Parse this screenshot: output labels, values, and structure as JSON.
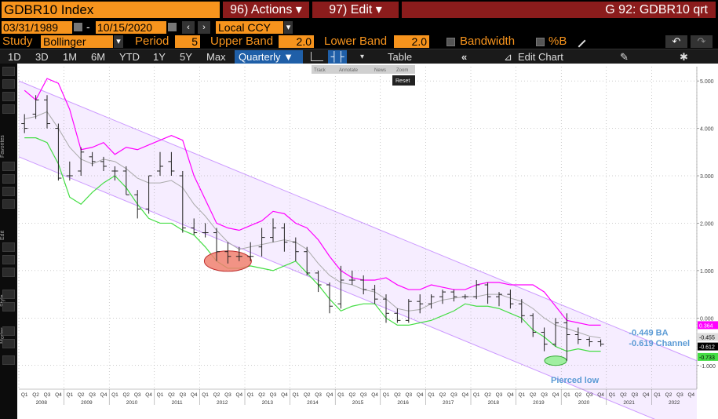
{
  "header": {
    "ticker": "GDBR10 Index",
    "actions_label": "96) Actions ▾",
    "edit_label": "97) Edit ▾",
    "function_title": "G 92: GDBR10 qrt"
  },
  "date_range": {
    "start": "03/31/1989",
    "sep": "-",
    "end": "10/15/2020",
    "currency": "Local CCY"
  },
  "study": {
    "study_label": "Study",
    "study_value": "Bollinger",
    "period_label": "Period",
    "period_value": "5",
    "upper_label": "Upper Band",
    "upper_value": "2.0",
    "lower_label": "Lower Band",
    "lower_value": "2.0",
    "bandwidth_label": "Bandwidth",
    "pctb_label": "%B"
  },
  "toolbar": {
    "ranges": [
      "1D",
      "3D",
      "1M",
      "6M",
      "YTD",
      "1Y",
      "5Y",
      "Max"
    ],
    "frequency": "Quarterly ▼",
    "table_label": "Table",
    "edit_chart_label": "Edit Chart"
  },
  "mini_toolbar": {
    "items": [
      "Track",
      "Annotate",
      "News",
      "Zoom"
    ],
    "reset": "Reset"
  },
  "sidebar": {
    "labels": [
      "Favorites",
      "Edit",
      "Style",
      "Modes"
    ]
  },
  "colors": {
    "accent": "#f7941d",
    "upper_band": "#ff00ff",
    "lower_band": "#44dd44",
    "middle_band": "#aaaaaa",
    "channel": "#cc99ff",
    "annotation_text": "#5b9bd5"
  },
  "chart_data": {
    "type": "ohlc",
    "frequency": "quarterly",
    "ylim": [
      -1.5,
      5.3
    ],
    "y_ticks": [
      5.0,
      4.0,
      3.0,
      2.0,
      1.0,
      0.0,
      -1.0
    ],
    "y_tick_labels": [
      "5.000",
      "4.000",
      "3.000",
      "2.000",
      "1.000",
      "0.000",
      "-1.000"
    ],
    "x_quarter_labels": [
      "Q1",
      "Q2",
      "Q3",
      "Q4"
    ],
    "years": [
      "2008",
      "2009",
      "2010",
      "2011",
      "2012",
      "2013",
      "2014",
      "2015",
      "2016",
      "2017",
      "2018",
      "2019",
      "2020",
      "2021",
      "2022"
    ],
    "price_quarters": 52,
    "total_quarters": 60,
    "ohlc": [
      [
        4.1,
        4.3,
        3.9,
        4.0
      ],
      [
        4.3,
        4.7,
        4.2,
        4.6
      ],
      [
        4.6,
        4.7,
        4.0,
        4.1
      ],
      [
        4.0,
        4.1,
        2.9,
        2.95
      ],
      [
        3.0,
        3.3,
        2.9,
        3.0
      ],
      [
        3.1,
        3.6,
        3.0,
        3.5
      ],
      [
        3.4,
        3.5,
        3.2,
        3.3
      ],
      [
        3.3,
        3.4,
        3.1,
        3.2
      ],
      [
        3.1,
        3.2,
        2.9,
        3.1
      ],
      [
        3.1,
        3.2,
        2.6,
        2.6
      ],
      [
        2.6,
        2.7,
        2.1,
        2.3
      ],
      [
        2.3,
        3.0,
        2.2,
        3.0
      ],
      [
        3.1,
        3.5,
        3.0,
        3.2
      ],
      [
        3.3,
        3.5,
        3.0,
        3.1
      ],
      [
        3.0,
        3.1,
        1.8,
        1.9
      ],
      [
        1.9,
        2.1,
        1.75,
        1.8
      ],
      [
        1.8,
        2.0,
        1.7,
        1.8
      ],
      [
        1.8,
        1.9,
        1.2,
        1.4
      ],
      [
        1.4,
        1.6,
        1.15,
        1.3
      ],
      [
        1.3,
        1.5,
        1.2,
        1.3
      ],
      [
        1.3,
        1.6,
        1.2,
        1.3
      ],
      [
        1.5,
        1.9,
        1.3,
        1.7
      ],
      [
        1.7,
        2.1,
        1.6,
        1.9
      ],
      [
        1.9,
        2.0,
        1.4,
        1.6
      ],
      [
        1.6,
        1.7,
        1.2,
        1.4
      ],
      [
        1.4,
        1.5,
        0.9,
        0.95
      ],
      [
        0.95,
        1.0,
        0.55,
        0.7
      ],
      [
        0.7,
        0.75,
        0.1,
        0.25
      ],
      [
        0.3,
        1.1,
        0.2,
        0.8
      ],
      [
        0.8,
        1.0,
        0.7,
        0.8
      ],
      [
        0.8,
        0.9,
        0.5,
        0.6
      ],
      [
        0.6,
        0.7,
        0.3,
        0.4
      ],
      [
        0.4,
        0.5,
        -0.1,
        0.1
      ],
      [
        0.1,
        0.2,
        -0.1,
        -0.05
      ],
      [
        -0.05,
        0.4,
        -0.1,
        0.35
      ],
      [
        0.35,
        0.5,
        0.1,
        0.3
      ],
      [
        0.3,
        0.5,
        0.2,
        0.45
      ],
      [
        0.45,
        0.6,
        0.3,
        0.55
      ],
      [
        0.55,
        0.6,
        0.35,
        0.45
      ],
      [
        0.45,
        0.5,
        0.4,
        0.45
      ],
      [
        0.45,
        0.8,
        0.4,
        0.7
      ],
      [
        0.7,
        0.75,
        0.3,
        0.45
      ],
      [
        0.45,
        0.55,
        0.25,
        0.5
      ],
      [
        0.5,
        0.6,
        0.2,
        0.3
      ],
      [
        0.3,
        0.4,
        -0.1,
        0.05
      ],
      [
        0.05,
        0.1,
        -0.4,
        -0.3
      ],
      [
        -0.3,
        -0.2,
        -0.7,
        -0.55
      ],
      [
        -0.55,
        0.0,
        -0.6,
        -0.1
      ],
      [
        -0.1,
        0.1,
        -0.9,
        -0.35
      ],
      [
        -0.35,
        -0.2,
        -0.55,
        -0.45
      ],
      [
        -0.45,
        -0.4,
        -0.6,
        -0.5
      ],
      [
        -0.5,
        -0.45,
        -0.6,
        -0.55
      ]
    ],
    "upper_band": [
      4.8,
      4.6,
      5.05,
      4.95,
      4.4,
      3.55,
      3.6,
      3.7,
      3.45,
      3.6,
      3.55,
      3.65,
      3.75,
      3.85,
      3.75,
      3.0,
      2.5,
      2.0,
      1.9,
      1.85,
      1.95,
      2.05,
      2.25,
      2.2,
      2.0,
      1.9,
      1.65,
      1.3,
      1.0,
      0.85,
      0.8,
      0.8,
      0.85,
      0.7,
      0.6,
      0.6,
      0.7,
      0.65,
      0.6,
      0.6,
      0.7,
      0.75,
      0.75,
      0.7,
      0.7,
      0.7,
      0.55,
      0.25,
      -0.05,
      -0.1,
      -0.15,
      -0.15
    ],
    "middle_band": [
      4.2,
      4.25,
      4.35,
      4.0,
      3.6,
      3.35,
      3.25,
      3.35,
      3.3,
      3.15,
      2.95,
      2.85,
      2.85,
      2.9,
      2.75,
      2.4,
      2.15,
      1.85,
      1.6,
      1.45,
      1.5,
      1.55,
      1.6,
      1.65,
      1.6,
      1.45,
      1.15,
      0.9,
      0.75,
      0.7,
      0.6,
      0.55,
      0.4,
      0.2,
      0.15,
      0.18,
      0.3,
      0.38,
      0.42,
      0.45,
      0.45,
      0.5,
      0.5,
      0.42,
      0.35,
      0.2,
      0.0,
      -0.15,
      -0.22,
      -0.3,
      -0.38,
      -0.42
    ],
    "lower_band": [
      3.8,
      3.8,
      3.7,
      3.25,
      2.55,
      2.4,
      2.65,
      2.85,
      3.0,
      2.75,
      2.4,
      2.1,
      2.0,
      2.0,
      1.85,
      1.75,
      1.5,
      1.2,
      1.05,
      1.05,
      1.1,
      1.05,
      1.0,
      1.1,
      1.2,
      0.95,
      0.7,
      0.4,
      0.15,
      0.25,
      0.3,
      0.3,
      0.0,
      -0.15,
      -0.15,
      -0.1,
      -0.05,
      0.05,
      0.15,
      0.3,
      0.25,
      0.25,
      0.2,
      0.1,
      0.0,
      -0.25,
      -0.4,
      -0.6,
      -0.7,
      -0.65,
      -0.7,
      -0.7
    ],
    "channel_upper": [
      [
        0,
        5.0
      ],
      [
        59,
        -0.9
      ]
    ],
    "channel_lower": [
      [
        0,
        3.4
      ],
      [
        59,
        -2.5
      ]
    ],
    "last_values": {
      "upper": "0.364",
      "price": "-0.612",
      "middle": "-0.455",
      "lower": "-0.733"
    },
    "annotations": [
      {
        "text": "-0.449 BA",
        "quarter": 53,
        "value": -0.3
      },
      {
        "text": "-0.619 Channel",
        "quarter": 53,
        "value": -0.52
      },
      {
        "text": "Pierced low",
        "quarter": 47,
        "value": -1.3
      }
    ],
    "highlights": [
      {
        "quarter": 18,
        "value": 1.2,
        "color": "red"
      },
      {
        "quarter": 47,
        "value": -0.9,
        "color": "green"
      }
    ]
  }
}
